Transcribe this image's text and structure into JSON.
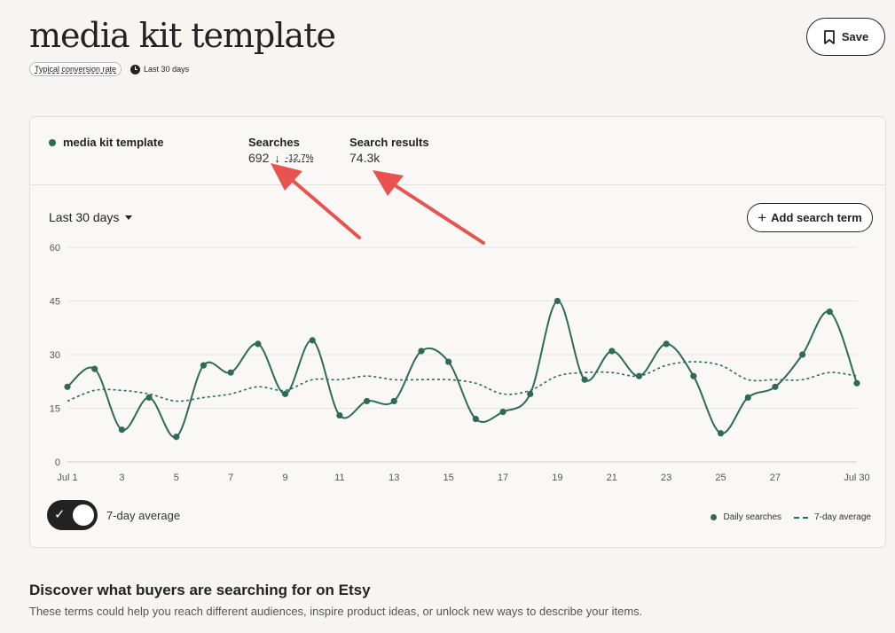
{
  "page": {
    "title": "media kit template",
    "conversion_pill": "Typical conversion rate",
    "period": "Last 30 days",
    "save_label": "Save"
  },
  "card": {
    "term": "media kit template",
    "searches": {
      "label": "Searches",
      "value": "692",
      "trend_arrow": "↓",
      "change": "-12.7%"
    },
    "results": {
      "label": "Search results",
      "value": "74.3k"
    },
    "range_label": "Last 30 days",
    "add_label": "Add search term",
    "toggle_label": "7-day average",
    "legend": {
      "daily": "Daily searches",
      "avg": "7-day average"
    }
  },
  "section": {
    "title": "Discover what buyers are searching for on Etsy",
    "desc": "These terms could help you reach different audiences, inspire product ideas, or unlock new ways to describe your items."
  },
  "colors": {
    "accent": "#2e6b56",
    "annotation": "#e8524f",
    "dark": "#222222"
  },
  "chart_data": {
    "type": "line",
    "x": [
      "Jul 1",
      "2",
      "3",
      "4",
      "5",
      "6",
      "7",
      "8",
      "9",
      "10",
      "11",
      "12",
      "13",
      "14",
      "15",
      "16",
      "17",
      "18",
      "19",
      "20",
      "21",
      "22",
      "23",
      "24",
      "25",
      "26",
      "27",
      "28",
      "29",
      "Jul 30"
    ],
    "x_tick_labels": [
      "Jul 1",
      "3",
      "5",
      "7",
      "9",
      "11",
      "13",
      "15",
      "17",
      "19",
      "21",
      "23",
      "25",
      "27",
      "Jul 30"
    ],
    "y_ticks": [
      0,
      15,
      30,
      45,
      60
    ],
    "ylim": [
      0,
      60
    ],
    "grid": true,
    "series": [
      {
        "name": "Daily searches",
        "style": "solid-with-points",
        "values": [
          21,
          26,
          9,
          18,
          7,
          27,
          25,
          33,
          19,
          34,
          13,
          17,
          17,
          31,
          28,
          12,
          14,
          19,
          45,
          23,
          31,
          24,
          33,
          24,
          8,
          18,
          21,
          30,
          42,
          22
        ]
      },
      {
        "name": "7-day average",
        "style": "dashed",
        "values": [
          17,
          20,
          20,
          19,
          17,
          18,
          19,
          21,
          20,
          23,
          23,
          24,
          23,
          23,
          23,
          22,
          19,
          20,
          24,
          25,
          25,
          24,
          27,
          28,
          27,
          23,
          23,
          23,
          25,
          24
        ]
      }
    ]
  }
}
